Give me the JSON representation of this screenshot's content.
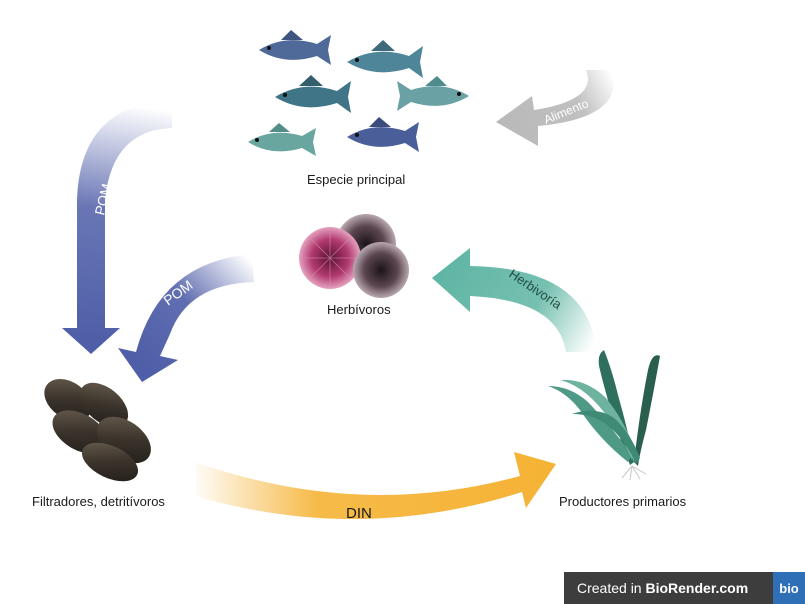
{
  "nodes": {
    "fish": "Especie principal",
    "urchins": "Herbívoros",
    "mussels": "Filtradores, detritívoros",
    "kelp": "Productores primarios"
  },
  "edges": {
    "food": "Alimento",
    "pom_left": "POM",
    "pom_mid": "POM",
    "herbivory": "Herbivoría",
    "din": "DIN"
  },
  "badge": {
    "prefix": "Created in ",
    "brand": "BioRender.com",
    "logo": "bio"
  },
  "colors": {
    "pom": "#4f5ea8",
    "herbivory": "#5fb5a3",
    "din": "#f5b335",
    "food": "#b9b9b9",
    "fish_body": "#4f8598",
    "urchin_pink": "#c0467a",
    "mussel": "#3b342c",
    "kelp": "#2e6f5d"
  }
}
